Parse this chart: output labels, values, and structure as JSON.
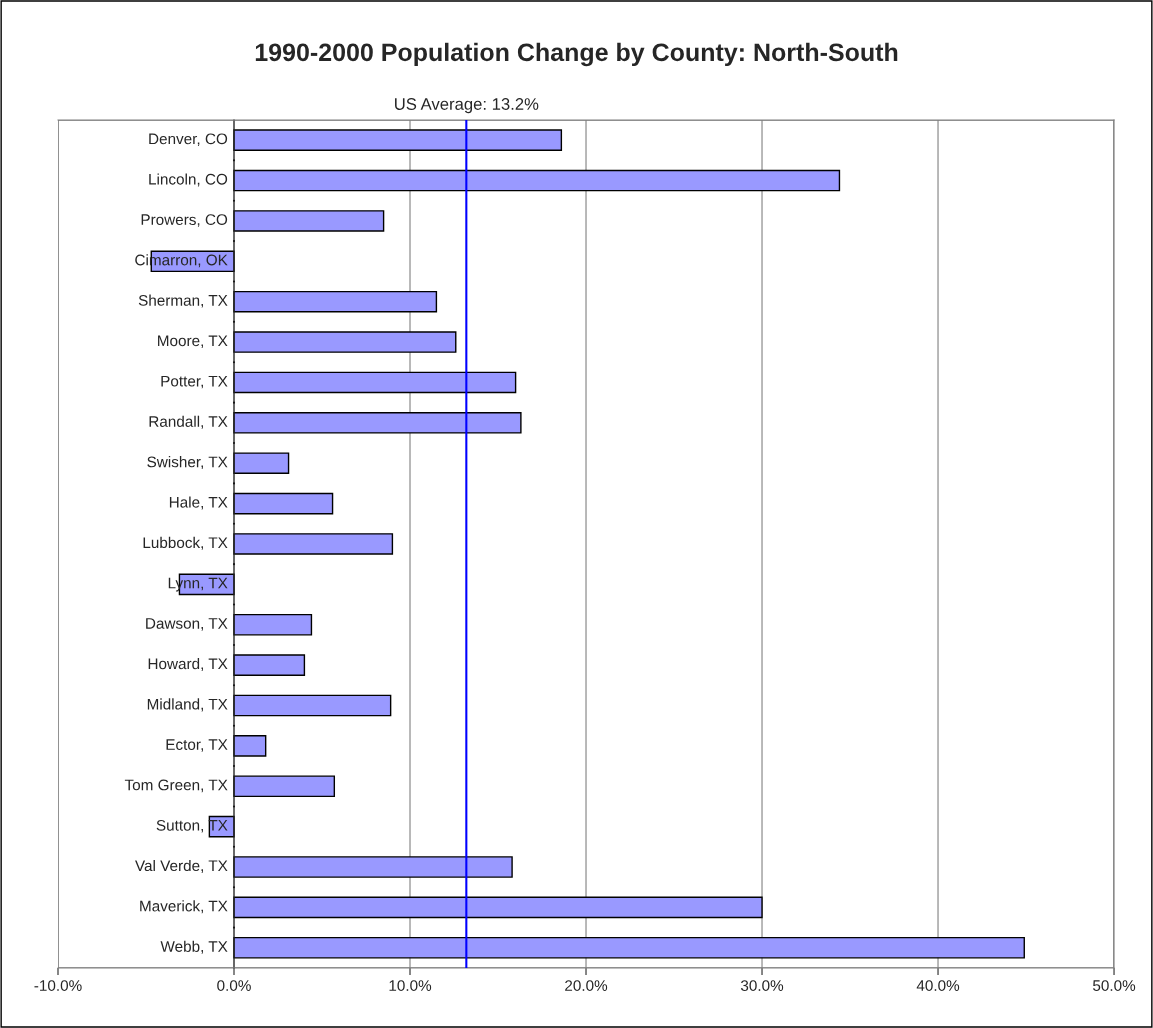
{
  "chart_data": {
    "type": "bar",
    "orientation": "horizontal",
    "title": "1990-2000 Population Change by County: North-South",
    "categories": [
      "Denver, CO",
      "Lincoln, CO",
      "Prowers, CO",
      "Cimarron, OK",
      "Sherman, TX",
      "Moore, TX",
      "Potter, TX",
      "Randall, TX",
      "Swisher, TX",
      "Hale, TX",
      "Lubbock, TX",
      "Lynn, TX",
      "Dawson, TX",
      "Howard, TX",
      "Midland, TX",
      "Ector, TX",
      "Tom Green, TX",
      "Sutton, TX",
      "Val Verde, TX",
      "Maverick, TX",
      "Webb, TX"
    ],
    "values": [
      18.6,
      34.4,
      8.5,
      -4.7,
      11.5,
      12.6,
      16.0,
      16.3,
      3.1,
      5.6,
      9.0,
      -3.1,
      4.4,
      4.0,
      8.9,
      1.8,
      5.7,
      -1.4,
      15.8,
      30.0,
      44.9
    ],
    "color": "#9999ff",
    "xlim": [
      -10,
      50
    ],
    "xticks": [
      {
        "value": -10,
        "label": "-10.0%"
      },
      {
        "value": 0,
        "label": "0.0%"
      },
      {
        "value": 10,
        "label": "10.0%"
      },
      {
        "value": 20,
        "label": "20.0%"
      },
      {
        "value": 30,
        "label": "30.0%"
      },
      {
        "value": 40,
        "label": "40.0%"
      },
      {
        "value": 50,
        "label": "50.0%"
      }
    ],
    "grid": "x",
    "ref_lines": [
      {
        "axis": "x",
        "value": 13.2,
        "label": "US Average: 13.2%",
        "color": "#0000ff",
        "line_style": "solid"
      }
    ]
  }
}
